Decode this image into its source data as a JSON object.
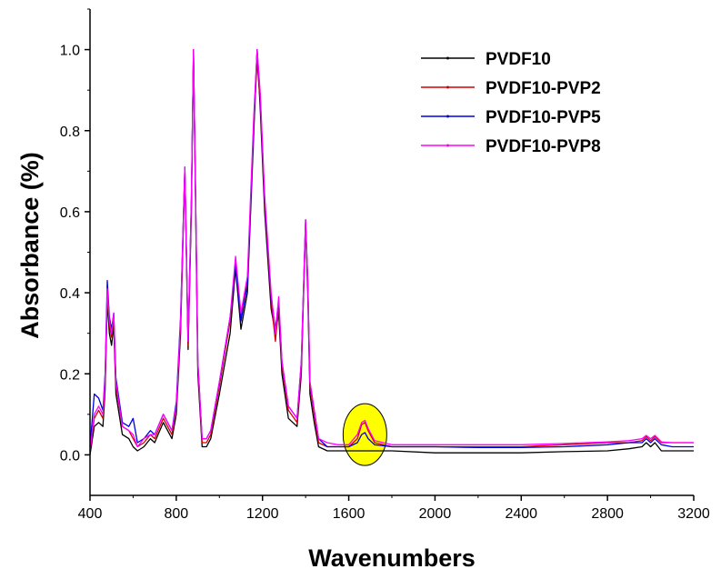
{
  "chart_data": {
    "type": "line",
    "title": "",
    "xlabel": "Wavenumbers",
    "ylabel": "Absorbance (%)",
    "xlim": [
      400,
      3200
    ],
    "ylim": [
      -0.1,
      1.1
    ],
    "x_ticks": [
      400,
      800,
      1200,
      1600,
      2000,
      2400,
      2800,
      3200
    ],
    "x_tick_labels": [
      "400",
      "800",
      "1200",
      "1600",
      "2000",
      "2400",
      "2800",
      "3200"
    ],
    "y_ticks": [
      0.0,
      0.2,
      0.4,
      0.6,
      0.8,
      1.0
    ],
    "y_tick_labels": [
      "0.0",
      "0.2",
      "0.4",
      "0.6",
      "0.8",
      "1.0"
    ],
    "grid": false,
    "legend_position": "top-right",
    "highlight": {
      "x": 1675,
      "y": 0.05,
      "color": "#ffff00"
    },
    "series": [
      {
        "name": "PVDF10",
        "color": "#000000",
        "points": [
          [
            400,
            0.0
          ],
          [
            420,
            0.07
          ],
          [
            440,
            0.08
          ],
          [
            460,
            0.07
          ],
          [
            470,
            0.16
          ],
          [
            480,
            0.38
          ],
          [
            490,
            0.3
          ],
          [
            500,
            0.27
          ],
          [
            510,
            0.32
          ],
          [
            520,
            0.15
          ],
          [
            550,
            0.05
          ],
          [
            580,
            0.04
          ],
          [
            600,
            0.02
          ],
          [
            620,
            0.01
          ],
          [
            650,
            0.02
          ],
          [
            680,
            0.04
          ],
          [
            700,
            0.03
          ],
          [
            740,
            0.08
          ],
          [
            760,
            0.06
          ],
          [
            780,
            0.04
          ],
          [
            800,
            0.1
          ],
          [
            820,
            0.3
          ],
          [
            840,
            0.7
          ],
          [
            855,
            0.26
          ],
          [
            870,
            0.6
          ],
          [
            880,
            1.0
          ],
          [
            890,
            0.6
          ],
          [
            900,
            0.2
          ],
          [
            920,
            0.02
          ],
          [
            940,
            0.02
          ],
          [
            960,
            0.04
          ],
          [
            1000,
            0.15
          ],
          [
            1050,
            0.3
          ],
          [
            1075,
            0.46
          ],
          [
            1100,
            0.31
          ],
          [
            1130,
            0.4
          ],
          [
            1160,
            0.8
          ],
          [
            1175,
            1.0
          ],
          [
            1190,
            0.85
          ],
          [
            1210,
            0.6
          ],
          [
            1240,
            0.36
          ],
          [
            1260,
            0.3
          ],
          [
            1275,
            0.35
          ],
          [
            1290,
            0.2
          ],
          [
            1320,
            0.09
          ],
          [
            1360,
            0.07
          ],
          [
            1380,
            0.2
          ],
          [
            1400,
            0.57
          ],
          [
            1410,
            0.4
          ],
          [
            1420,
            0.15
          ],
          [
            1440,
            0.08
          ],
          [
            1460,
            0.02
          ],
          [
            1500,
            0.01
          ],
          [
            1550,
            0.01
          ],
          [
            1600,
            0.01
          ],
          [
            1650,
            0.01
          ],
          [
            1700,
            0.01
          ],
          [
            1800,
            0.01
          ],
          [
            2000,
            0.005
          ],
          [
            2200,
            0.005
          ],
          [
            2400,
            0.005
          ],
          [
            2600,
            0.008
          ],
          [
            2800,
            0.01
          ],
          [
            2900,
            0.015
          ],
          [
            2960,
            0.02
          ],
          [
            2980,
            0.03
          ],
          [
            3000,
            0.02
          ],
          [
            3020,
            0.03
          ],
          [
            3050,
            0.01
          ],
          [
            3100,
            0.01
          ],
          [
            3200,
            0.01
          ]
        ]
      },
      {
        "name": "PVDF10-PVP2",
        "color": "#d40000",
        "points": [
          [
            400,
            0.01
          ],
          [
            420,
            0.09
          ],
          [
            440,
            0.11
          ],
          [
            460,
            0.09
          ],
          [
            470,
            0.18
          ],
          [
            480,
            0.4
          ],
          [
            490,
            0.32
          ],
          [
            500,
            0.29
          ],
          [
            510,
            0.34
          ],
          [
            520,
            0.17
          ],
          [
            550,
            0.07
          ],
          [
            580,
            0.06
          ],
          [
            600,
            0.04
          ],
          [
            620,
            0.02
          ],
          [
            650,
            0.03
          ],
          [
            680,
            0.05
          ],
          [
            700,
            0.04
          ],
          [
            740,
            0.09
          ],
          [
            760,
            0.07
          ],
          [
            780,
            0.05
          ],
          [
            800,
            0.12
          ],
          [
            820,
            0.32
          ],
          [
            840,
            0.71
          ],
          [
            855,
            0.27
          ],
          [
            870,
            0.62
          ],
          [
            880,
            1.0
          ],
          [
            890,
            0.62
          ],
          [
            900,
            0.22
          ],
          [
            920,
            0.03
          ],
          [
            940,
            0.03
          ],
          [
            960,
            0.05
          ],
          [
            1000,
            0.17
          ],
          [
            1050,
            0.33
          ],
          [
            1075,
            0.48
          ],
          [
            1100,
            0.34
          ],
          [
            1130,
            0.43
          ],
          [
            1160,
            0.82
          ],
          [
            1175,
            0.97
          ],
          [
            1190,
            0.87
          ],
          [
            1210,
            0.62
          ],
          [
            1240,
            0.38
          ],
          [
            1260,
            0.28
          ],
          [
            1275,
            0.37
          ],
          [
            1290,
            0.22
          ],
          [
            1320,
            0.11
          ],
          [
            1360,
            0.08
          ],
          [
            1380,
            0.22
          ],
          [
            1400,
            0.57
          ],
          [
            1410,
            0.42
          ],
          [
            1420,
            0.17
          ],
          [
            1440,
            0.1
          ],
          [
            1460,
            0.03
          ],
          [
            1500,
            0.02
          ],
          [
            1550,
            0.02
          ],
          [
            1600,
            0.02
          ],
          [
            1640,
            0.04
          ],
          [
            1660,
            0.075
          ],
          [
            1675,
            0.08
          ],
          [
            1690,
            0.06
          ],
          [
            1720,
            0.03
          ],
          [
            1800,
            0.02
          ],
          [
            2000,
            0.02
          ],
          [
            2200,
            0.02
          ],
          [
            2400,
            0.02
          ],
          [
            2600,
            0.025
          ],
          [
            2800,
            0.03
          ],
          [
            2900,
            0.03
          ],
          [
            2960,
            0.035
          ],
          [
            2980,
            0.045
          ],
          [
            3000,
            0.035
          ],
          [
            3020,
            0.045
          ],
          [
            3050,
            0.03
          ],
          [
            3100,
            0.03
          ],
          [
            3200,
            0.03
          ]
        ]
      },
      {
        "name": "PVDF10-PVP5",
        "color": "#0000e0",
        "points": [
          [
            400,
            0.02
          ],
          [
            420,
            0.15
          ],
          [
            440,
            0.14
          ],
          [
            460,
            0.11
          ],
          [
            470,
            0.2
          ],
          [
            480,
            0.43
          ],
          [
            490,
            0.34
          ],
          [
            500,
            0.31
          ],
          [
            510,
            0.35
          ],
          [
            520,
            0.19
          ],
          [
            550,
            0.08
          ],
          [
            580,
            0.07
          ],
          [
            600,
            0.09
          ],
          [
            620,
            0.03
          ],
          [
            650,
            0.04
          ],
          [
            680,
            0.06
          ],
          [
            700,
            0.05
          ],
          [
            740,
            0.1
          ],
          [
            760,
            0.08
          ],
          [
            780,
            0.06
          ],
          [
            800,
            0.13
          ],
          [
            820,
            0.34
          ],
          [
            840,
            0.71
          ],
          [
            855,
            0.28
          ],
          [
            870,
            0.63
          ],
          [
            880,
            0.99
          ],
          [
            890,
            0.63
          ],
          [
            900,
            0.23
          ],
          [
            920,
            0.04
          ],
          [
            940,
            0.04
          ],
          [
            960,
            0.06
          ],
          [
            1000,
            0.18
          ],
          [
            1050,
            0.34
          ],
          [
            1075,
            0.47
          ],
          [
            1100,
            0.33
          ],
          [
            1130,
            0.42
          ],
          [
            1160,
            0.82
          ],
          [
            1175,
            1.0
          ],
          [
            1190,
            0.88
          ],
          [
            1210,
            0.63
          ],
          [
            1240,
            0.39
          ],
          [
            1260,
            0.31
          ],
          [
            1275,
            0.38
          ],
          [
            1290,
            0.23
          ],
          [
            1320,
            0.12
          ],
          [
            1360,
            0.09
          ],
          [
            1380,
            0.23
          ],
          [
            1400,
            0.58
          ],
          [
            1410,
            0.43
          ],
          [
            1420,
            0.18
          ],
          [
            1440,
            0.11
          ],
          [
            1460,
            0.04
          ],
          [
            1500,
            0.02
          ],
          [
            1550,
            0.02
          ],
          [
            1600,
            0.02
          ],
          [
            1640,
            0.03
          ],
          [
            1660,
            0.05
          ],
          [
            1675,
            0.055
          ],
          [
            1690,
            0.04
          ],
          [
            1720,
            0.025
          ],
          [
            1800,
            0.02
          ],
          [
            2000,
            0.02
          ],
          [
            2200,
            0.018
          ],
          [
            2400,
            0.018
          ],
          [
            2600,
            0.02
          ],
          [
            2800,
            0.025
          ],
          [
            2900,
            0.03
          ],
          [
            2960,
            0.03
          ],
          [
            2980,
            0.04
          ],
          [
            3000,
            0.03
          ],
          [
            3020,
            0.04
          ],
          [
            3050,
            0.025
          ],
          [
            3100,
            0.02
          ],
          [
            3200,
            0.02
          ]
        ]
      },
      {
        "name": "PVDF10-PVP8",
        "color": "#ff00ff",
        "points": [
          [
            400,
            0.01
          ],
          [
            420,
            0.1
          ],
          [
            440,
            0.12
          ],
          [
            460,
            0.1
          ],
          [
            470,
            0.19
          ],
          [
            480,
            0.41
          ],
          [
            490,
            0.33
          ],
          [
            500,
            0.3
          ],
          [
            510,
            0.35
          ],
          [
            520,
            0.18
          ],
          [
            550,
            0.07
          ],
          [
            580,
            0.06
          ],
          [
            600,
            0.05
          ],
          [
            620,
            0.02
          ],
          [
            650,
            0.04
          ],
          [
            680,
            0.05
          ],
          [
            700,
            0.05
          ],
          [
            740,
            0.1
          ],
          [
            760,
            0.08
          ],
          [
            780,
            0.06
          ],
          [
            800,
            0.12
          ],
          [
            820,
            0.33
          ],
          [
            840,
            0.71
          ],
          [
            855,
            0.28
          ],
          [
            870,
            0.63
          ],
          [
            880,
            1.0
          ],
          [
            890,
            0.63
          ],
          [
            900,
            0.23
          ],
          [
            920,
            0.04
          ],
          [
            940,
            0.04
          ],
          [
            960,
            0.06
          ],
          [
            1000,
            0.18
          ],
          [
            1050,
            0.34
          ],
          [
            1075,
            0.49
          ],
          [
            1100,
            0.35
          ],
          [
            1130,
            0.44
          ],
          [
            1160,
            0.84
          ],
          [
            1175,
            1.0
          ],
          [
            1190,
            0.89
          ],
          [
            1210,
            0.64
          ],
          [
            1240,
            0.4
          ],
          [
            1260,
            0.3
          ],
          [
            1275,
            0.39
          ],
          [
            1290,
            0.23
          ],
          [
            1320,
            0.12
          ],
          [
            1360,
            0.09
          ],
          [
            1380,
            0.23
          ],
          [
            1400,
            0.58
          ],
          [
            1410,
            0.43
          ],
          [
            1420,
            0.18
          ],
          [
            1440,
            0.11
          ],
          [
            1460,
            0.04
          ],
          [
            1500,
            0.03
          ],
          [
            1550,
            0.025
          ],
          [
            1600,
            0.025
          ],
          [
            1640,
            0.05
          ],
          [
            1660,
            0.08
          ],
          [
            1675,
            0.085
          ],
          [
            1690,
            0.065
          ],
          [
            1720,
            0.035
          ],
          [
            1800,
            0.025
          ],
          [
            2000,
            0.025
          ],
          [
            2200,
            0.025
          ],
          [
            2400,
            0.025
          ],
          [
            2600,
            0.028
          ],
          [
            2800,
            0.032
          ],
          [
            2900,
            0.035
          ],
          [
            2960,
            0.04
          ],
          [
            2980,
            0.048
          ],
          [
            3000,
            0.04
          ],
          [
            3020,
            0.048
          ],
          [
            3050,
            0.032
          ],
          [
            3100,
            0.03
          ],
          [
            3200,
            0.03
          ]
        ]
      }
    ]
  }
}
